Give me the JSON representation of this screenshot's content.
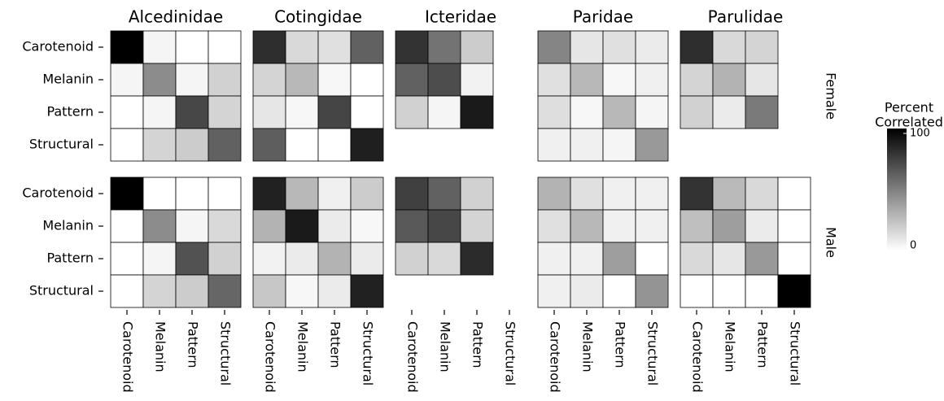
{
  "chart_data": {
    "type": "heatmap",
    "columns": [
      "Alcedinidae",
      "Cotingidae",
      "Icteridae",
      "Paridae",
      "Parulidae"
    ],
    "rows": [
      "Female",
      "Male"
    ],
    "x_categories": [
      "Carotenoid",
      "Melanin",
      "Pattern",
      "Structural"
    ],
    "y_categories": [
      "Carotenoid",
      "Melanin",
      "Pattern",
      "Structural"
    ],
    "values": [
      [
        [
          [
            100,
            4,
            0,
            0
          ],
          [
            4,
            45,
            4,
            18
          ],
          [
            0,
            4,
            72,
            17
          ],
          [
            0,
            17,
            20,
            62
          ]
        ],
        [
          [
            100,
            0,
            0,
            0
          ],
          [
            0,
            45,
            4,
            15
          ],
          [
            0,
            4,
            68,
            18
          ],
          [
            0,
            17,
            20,
            60
          ]
        ]
      ],
      [
        [
          [
            82,
            15,
            12,
            62
          ],
          [
            17,
            28,
            3,
            0
          ],
          [
            10,
            3,
            73,
            0
          ],
          [
            63,
            0,
            0,
            88
          ]
        ],
        [
          [
            87,
            28,
            6,
            20
          ],
          [
            30,
            90,
            8,
            3
          ],
          [
            5,
            8,
            30,
            8
          ],
          [
            22,
            3,
            8,
            87
          ]
        ]
      ],
      [
        [
          [
            80,
            55,
            20,
            null
          ],
          [
            62,
            70,
            5,
            null
          ],
          [
            18,
            4,
            90,
            null
          ],
          [
            null,
            null,
            null,
            null
          ]
        ],
        [
          [
            75,
            62,
            18,
            null
          ],
          [
            65,
            72,
            17,
            null
          ],
          [
            18,
            15,
            83,
            null
          ],
          [
            null,
            null,
            null,
            null
          ]
        ]
      ],
      [
        [
          [
            48,
            10,
            12,
            8
          ],
          [
            12,
            28,
            3,
            6
          ],
          [
            13,
            3,
            28,
            4
          ],
          [
            6,
            6,
            4,
            40
          ]
        ],
        [
          [
            30,
            12,
            6,
            6
          ],
          [
            12,
            28,
            6,
            6
          ],
          [
            6,
            6,
            38,
            0
          ],
          [
            6,
            8,
            0,
            42
          ]
        ]
      ],
      [
        [
          [
            82,
            15,
            17,
            null
          ],
          [
            17,
            30,
            10,
            null
          ],
          [
            18,
            8,
            52,
            null
          ],
          [
            null,
            null,
            null,
            null
          ]
        ],
        [
          [
            80,
            27,
            15,
            0
          ],
          [
            25,
            38,
            8,
            0
          ],
          [
            15,
            10,
            40,
            0
          ],
          [
            0,
            0,
            0,
            100
          ]
        ]
      ]
    ],
    "legend_title": [
      "Percent",
      "Correlated"
    ],
    "clim": [
      0,
      100
    ],
    "cticks": [
      0,
      100
    ],
    "low_color": "#ffffff",
    "high_color": "#000000"
  }
}
